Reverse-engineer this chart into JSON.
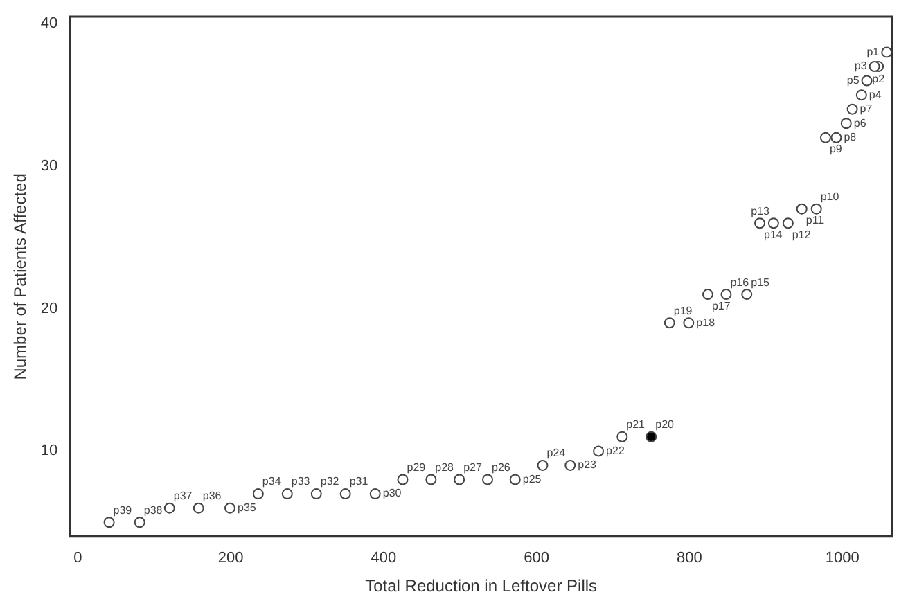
{
  "chart_data": {
    "type": "scatter",
    "xlabel": "Total Reduction in Leftover Pills",
    "ylabel": "Number of Patients Affected",
    "x": [
      1058,
      1047,
      1042,
      1025,
      1032,
      1005,
      1013,
      992,
      978,
      966,
      947,
      929,
      910,
      892,
      875,
      848,
      824,
      799,
      774,
      750,
      712,
      681,
      644,
      608,
      572,
      536,
      499,
      462,
      425,
      389,
      350,
      312,
      274,
      236,
      199,
      158,
      120,
      81,
      41
    ],
    "values": [
      38,
      37,
      37,
      35,
      36,
      33,
      34,
      32,
      32,
      27,
      27,
      26,
      26,
      26,
      21,
      21,
      21,
      19,
      19,
      11,
      11,
      10,
      9,
      9,
      8,
      8,
      8,
      8,
      8,
      7,
      7,
      7,
      7,
      7,
      6,
      6,
      6,
      5,
      5
    ],
    "colors": [
      "#ffffff",
      "#ffffff",
      "#ffffff",
      "#ffffff",
      "#ffffff",
      "#ffffff",
      "#ffffff",
      "#ffffff",
      "#ffffff",
      "#ffffff",
      "#ffffff",
      "#ffffff",
      "#ffffff",
      "#ffffff",
      "#ffffff",
      "#ffffff",
      "#ffffff",
      "#ffffff",
      "#ffffff",
      "#000000",
      "#ffffff",
      "#ffffff",
      "#ffffff",
      "#ffffff",
      "#ffffff",
      "#ffffff",
      "#ffffff",
      "#ffffff",
      "#ffffff",
      "#ffffff",
      "#ffffff",
      "#ffffff",
      "#ffffff",
      "#ffffff",
      "#ffffff",
      "#ffffff",
      "#ffffff",
      "#ffffff",
      "#ffffff"
    ],
    "marker": "circle",
    "xlim": [
      -10,
      1065
    ],
    "ylim": [
      4,
      40.5
    ],
    "xticks": [
      0,
      200,
      400,
      600,
      800,
      1000
    ],
    "yticks": [
      10,
      20,
      30,
      40
    ],
    "grid": false,
    "legend": false,
    "annotations": [
      {
        "text": "p1",
        "x": 1058,
        "y": 38
      },
      {
        "text": "p2",
        "x": 1047,
        "y": 37
      },
      {
        "text": "p3",
        "x": 1042,
        "y": 37
      },
      {
        "text": "p4",
        "x": 1025,
        "y": 35
      },
      {
        "text": "p5",
        "x": 1032,
        "y": 36
      },
      {
        "text": "p6",
        "x": 1005,
        "y": 33
      },
      {
        "text": "p7",
        "x": 1013,
        "y": 34
      },
      {
        "text": "p8",
        "x": 992,
        "y": 32
      },
      {
        "text": "p9",
        "x": 978,
        "y": 32
      },
      {
        "text": "p10",
        "x": 966,
        "y": 27
      },
      {
        "text": "p11",
        "x": 947,
        "y": 27
      },
      {
        "text": "p12",
        "x": 929,
        "y": 26
      },
      {
        "text": "p13",
        "x": 910,
        "y": 26
      },
      {
        "text": "p14",
        "x": 892,
        "y": 26
      },
      {
        "text": "p15",
        "x": 875,
        "y": 21
      },
      {
        "text": "p16",
        "x": 848,
        "y": 21
      },
      {
        "text": "p17",
        "x": 824,
        "y": 21
      },
      {
        "text": "p18",
        "x": 799,
        "y": 19
      },
      {
        "text": "p19",
        "x": 774,
        "y": 19
      },
      {
        "text": "p20",
        "x": 750,
        "y": 11
      },
      {
        "text": "p21",
        "x": 712,
        "y": 11
      },
      {
        "text": "p22",
        "x": 681,
        "y": 10
      },
      {
        "text": "p23",
        "x": 644,
        "y": 9
      },
      {
        "text": "p24",
        "x": 608,
        "y": 9
      },
      {
        "text": "p25",
        "x": 572,
        "y": 8
      },
      {
        "text": "p26",
        "x": 536,
        "y": 8
      },
      {
        "text": "p27",
        "x": 499,
        "y": 8
      },
      {
        "text": "p28",
        "x": 462,
        "y": 8
      },
      {
        "text": "p29",
        "x": 425,
        "y": 8
      },
      {
        "text": "p30",
        "x": 389,
        "y": 7
      },
      {
        "text": "p31",
        "x": 350,
        "y": 7
      },
      {
        "text": "p32",
        "x": 312,
        "y": 7
      },
      {
        "text": "p33",
        "x": 274,
        "y": 7
      },
      {
        "text": "p34",
        "x": 236,
        "y": 7
      },
      {
        "text": "p35",
        "x": 199,
        "y": 6
      },
      {
        "text": "p36",
        "x": 158,
        "y": 6
      },
      {
        "text": "p37",
        "x": 120,
        "y": 6
      },
      {
        "text": "p38",
        "x": 81,
        "y": 5
      },
      {
        "text": "p39",
        "x": 41,
        "y": 5
      }
    ]
  }
}
